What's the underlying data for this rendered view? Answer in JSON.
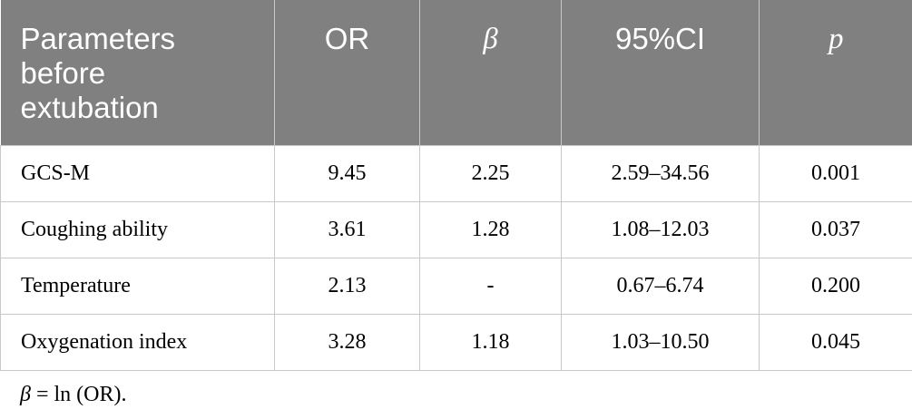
{
  "table": {
    "header": [
      "Parameters before extubation",
      "OR",
      "β",
      "95%CI",
      "p"
    ],
    "rows": [
      [
        "GCS-M",
        "9.45",
        "2.25",
        "2.59–34.56",
        "0.001"
      ],
      [
        "Coughing ability",
        "3.61",
        "1.28",
        "1.08–12.03",
        "0.037"
      ],
      [
        "Temperature",
        "2.13",
        "-",
        "0.67–6.74",
        "0.200"
      ],
      [
        "Oxygenation index",
        "3.28",
        "1.18",
        "1.03–10.50",
        "0.045"
      ]
    ]
  },
  "footnote": {
    "symbol": "β",
    "text": " = ln (OR)."
  }
}
